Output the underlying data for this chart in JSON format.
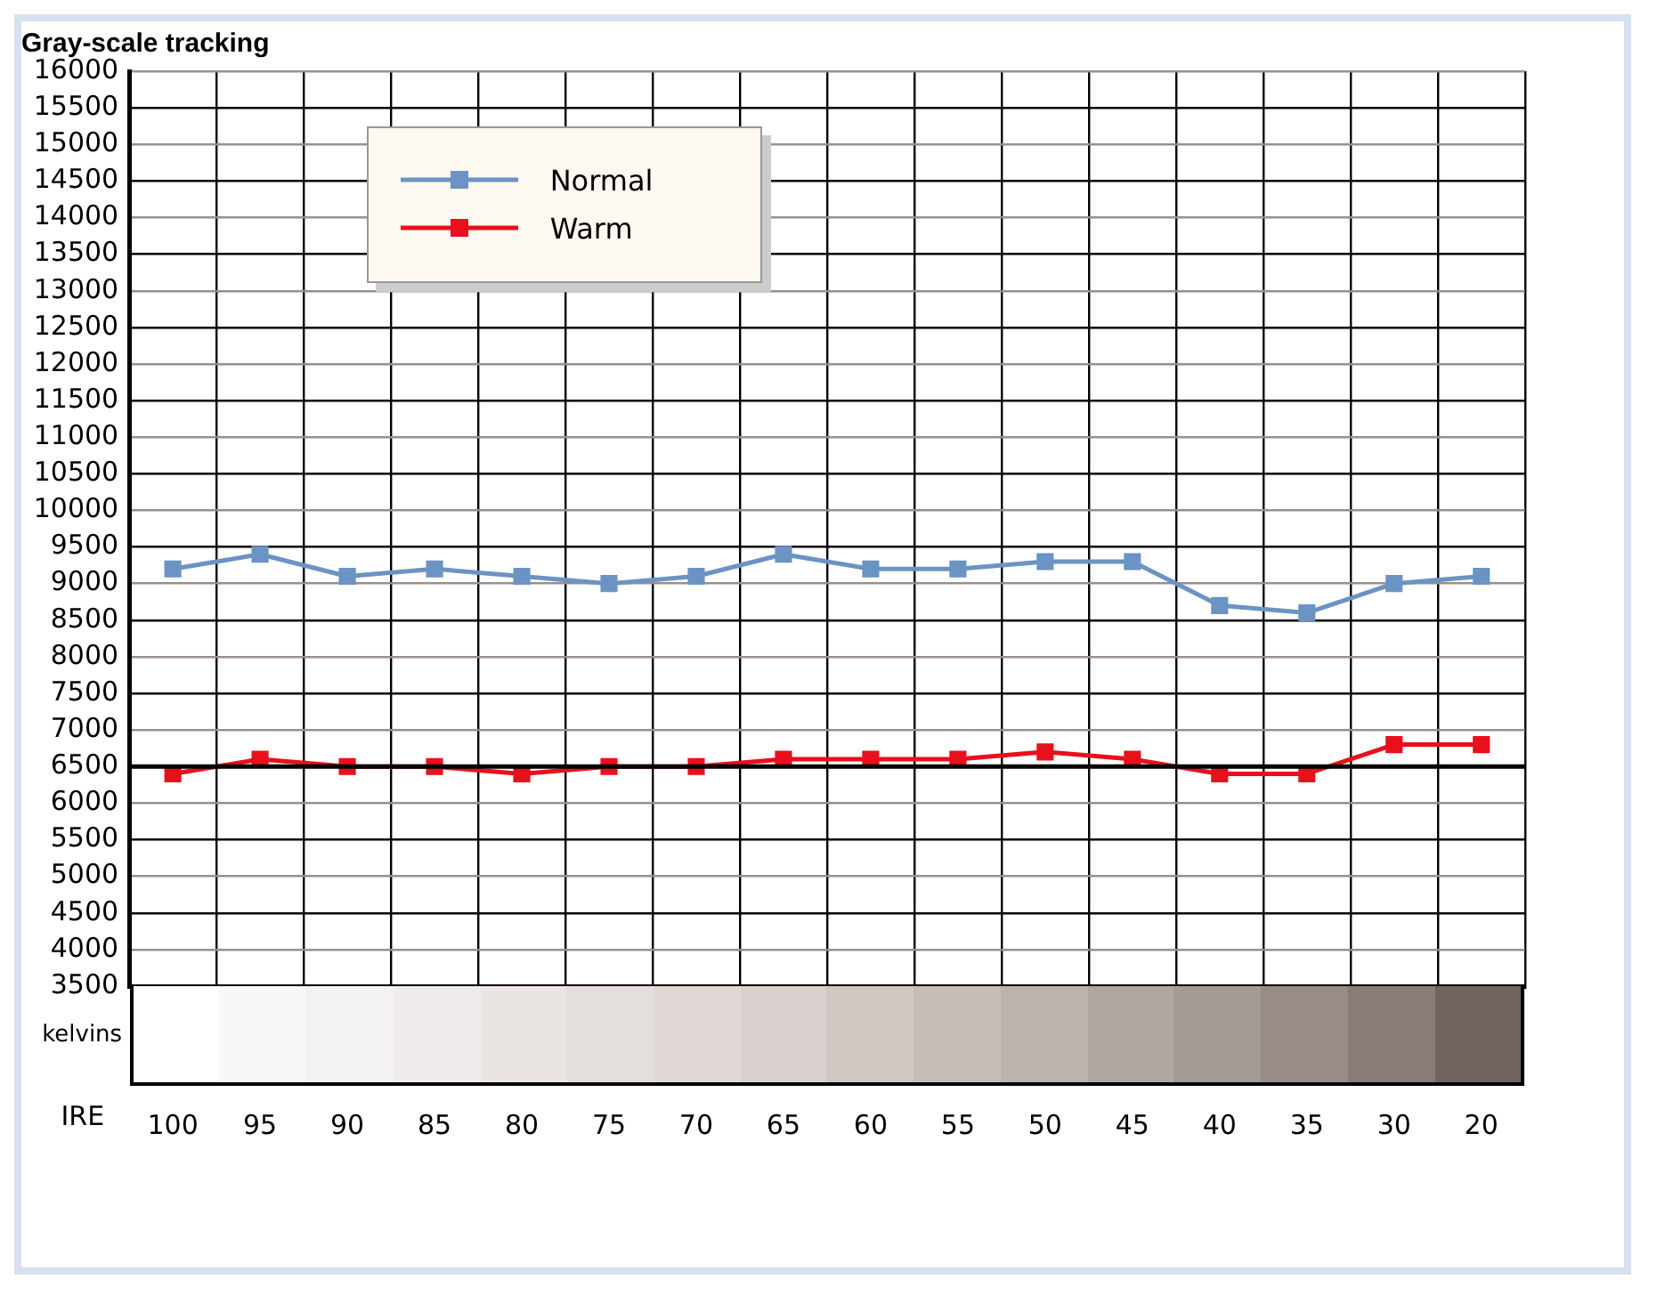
{
  "chart_data": {
    "type": "line",
    "title": "Gray-scale tracking",
    "xlabel": "IRE",
    "annotations": [
      "kelvins"
    ],
    "categories": [
      "100",
      "95",
      "90",
      "85",
      "80",
      "75",
      "70",
      "65",
      "60",
      "55",
      "50",
      "45",
      "40",
      "35",
      "30",
      "20"
    ],
    "series": [
      {
        "name": "Normal",
        "color": "#6b93c3",
        "values": [
          9200,
          9400,
          9100,
          9200,
          9100,
          9000,
          9100,
          9400,
          9200,
          9200,
          9300,
          9300,
          8700,
          8600,
          9000,
          9100
        ]
      },
      {
        "name": "Warm",
        "color": "#e8101c",
        "values": [
          6400,
          6600,
          6500,
          6500,
          6400,
          6500,
          6500,
          6600,
          6600,
          6600,
          6700,
          6600,
          6400,
          6400,
          6800,
          6800
        ]
      }
    ],
    "ylim": [
      3500,
      16000
    ],
    "yticks": [
      3500,
      4000,
      4500,
      5000,
      5500,
      6000,
      6500,
      7000,
      7500,
      8000,
      8500,
      9000,
      9500,
      10000,
      10500,
      11000,
      11500,
      12000,
      12500,
      13000,
      13500,
      14000,
      14500,
      15000,
      15500,
      16000
    ],
    "ref_lines": [
      {
        "axis": "y",
        "value": 6500,
        "color": "#000000"
      }
    ],
    "grid": true,
    "legend": "top left",
    "marker": "square",
    "line_style": "solid"
  }
}
